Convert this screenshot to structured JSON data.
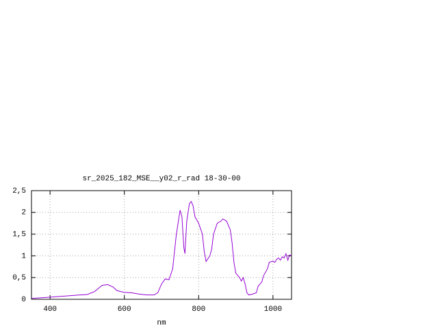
{
  "chart_data": {
    "type": "line",
    "title": "sr_2025_182_MSE__y02_r_rad 18-30-00",
    "x_label": "nm",
    "xlim": [
      350,
      1050
    ],
    "xticks": [
      400,
      600,
      800,
      1000
    ],
    "ylim": [
      0,
      2.5
    ],
    "yticks": [
      0,
      {
        "value": 0.5,
        "label": "0,5"
      },
      1,
      {
        "value": 1.5,
        "label": "1,5"
      },
      2,
      {
        "value": 2.5,
        "label": "2,5"
      }
    ],
    "grid": true,
    "x": [
      350,
      400,
      450,
      480,
      500,
      520,
      540,
      555,
      570,
      580,
      600,
      620,
      640,
      660,
      680,
      690,
      700,
      710,
      720,
      730,
      740,
      750,
      755,
      760,
      763,
      768,
      775,
      780,
      785,
      790,
      800,
      810,
      815,
      820,
      830,
      835,
      840,
      850,
      860,
      865,
      875,
      885,
      890,
      895,
      900,
      910,
      915,
      920,
      925,
      930,
      935,
      945,
      955,
      960,
      970,
      975,
      985,
      990,
      1000,
      1005,
      1010,
      1015,
      1020,
      1025,
      1030,
      1035,
      1040,
      1045,
      1050
    ],
    "series": [
      {
        "color": "#9400d3",
        "values": [
          0.02,
          0.05,
          0.08,
          0.1,
          0.11,
          0.18,
          0.32,
          0.34,
          0.28,
          0.2,
          0.16,
          0.15,
          0.12,
          0.1,
          0.1,
          0.15,
          0.35,
          0.47,
          0.45,
          0.7,
          1.5,
          2.05,
          1.9,
          1.2,
          1.05,
          1.8,
          2.2,
          2.25,
          2.15,
          1.9,
          1.75,
          1.5,
          1.1,
          0.87,
          1.0,
          1.15,
          1.5,
          1.75,
          1.8,
          1.85,
          1.8,
          1.6,
          1.3,
          0.85,
          0.6,
          0.5,
          0.42,
          0.5,
          0.35,
          0.15,
          0.1,
          0.12,
          0.15,
          0.3,
          0.4,
          0.55,
          0.7,
          0.85,
          0.88,
          0.85,
          0.92,
          0.95,
          0.9,
          0.98,
          0.95,
          1.05,
          0.9,
          1.02,
          1.0
        ]
      }
    ]
  }
}
